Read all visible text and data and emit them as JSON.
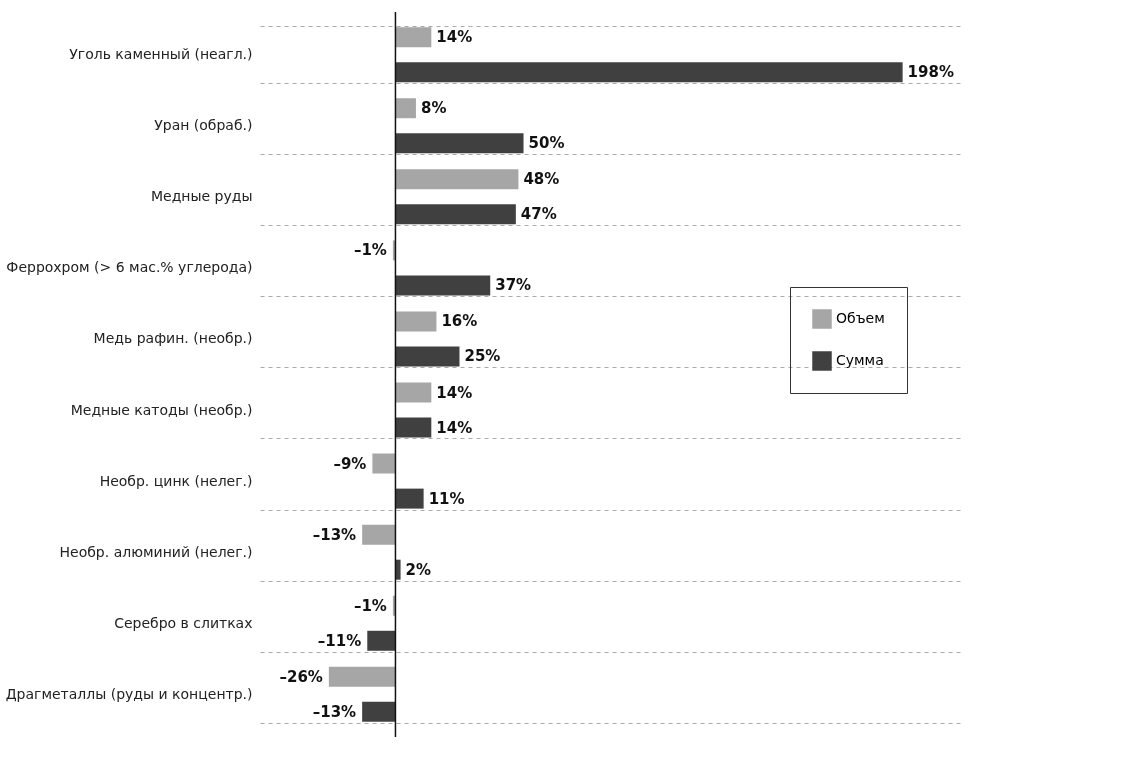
{
  "chart_data": {
    "type": "bar",
    "orientation": "horizontal",
    "categories": [
      "Уголь каменный (неагл.)",
      "Уран (обраб.)",
      "Медные руды",
      "Феррохром (> 6 мас.% углерода)",
      "Медь рафин. (необр.)",
      "Медные катоды (необр.)",
      "Необр. цинк (нелег.)",
      "Необр. алюминий (нелег.)",
      "Серебро в слитках",
      "Драгметаллы (руды и концентр.)"
    ],
    "series": [
      {
        "name": "Объем",
        "color": "#a6a6a6",
        "values": [
          14,
          8,
          48,
          -1,
          16,
          14,
          -9,
          -13,
          -1,
          -26
        ],
        "value_labels": [
          "14%",
          "8%",
          "48%",
          "–1%",
          "16%",
          "14%",
          "–9%",
          "–13%",
          "–1%",
          "–26%"
        ]
      },
      {
        "name": "Сумма",
        "color": "#404040",
        "values": [
          198,
          50,
          47,
          37,
          25,
          14,
          11,
          2,
          -11,
          -13
        ],
        "value_labels": [
          "198%",
          "50%",
          "47%",
          "37%",
          "25%",
          "14%",
          "11%",
          "2%",
          "–11%",
          "–13%"
        ]
      }
    ],
    "grid": "y",
    "legend": "right"
  }
}
